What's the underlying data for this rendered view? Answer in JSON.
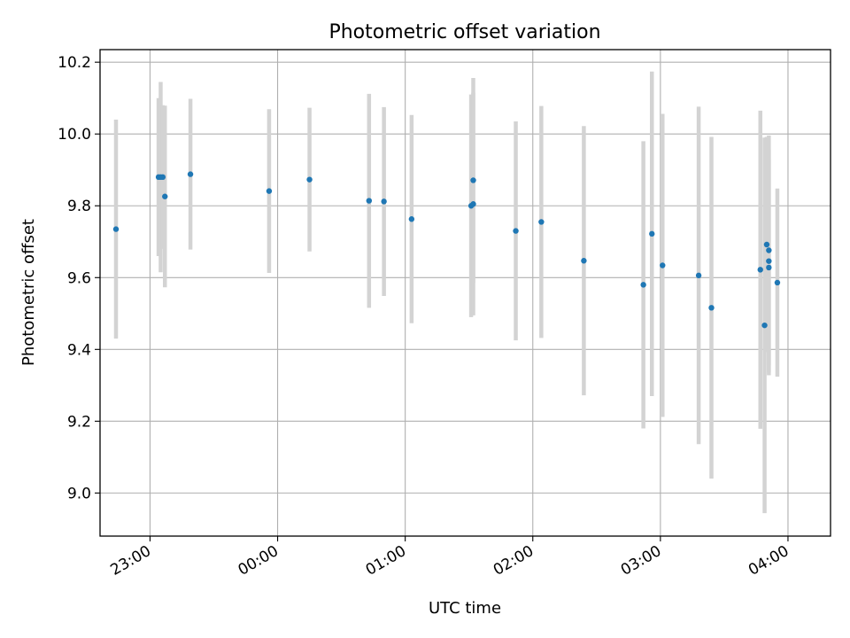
{
  "chart_data": {
    "type": "scatter",
    "title": "Photometric offset variation",
    "xlabel": "UTC time",
    "ylabel": "Photometric offset",
    "x_ticks": [
      "23:00",
      "00:00",
      "01:00",
      "02:00",
      "03:00",
      "04:00"
    ],
    "y_ticks": [
      "9.0",
      "9.2",
      "9.4",
      "9.6",
      "9.8",
      "10.0",
      "10.2"
    ],
    "grid": true,
    "point_color": "#1f77b4",
    "errorbar_color": "#d3d3d3",
    "points": [
      {
        "t": "22:44",
        "y": 9.735,
        "err": 0.305
      },
      {
        "t": "23:04",
        "y": 9.88,
        "err": 0.22
      },
      {
        "t": "23:05",
        "y": 9.88,
        "err": 0.265
      },
      {
        "t": "23:06",
        "y": 9.88,
        "err": 0.2
      },
      {
        "t": "23:07",
        "y": 9.826,
        "err": 0.253
      },
      {
        "t": "23:19",
        "y": 9.888,
        "err": 0.21
      },
      {
        "t": "23:56",
        "y": 9.841,
        "err": 0.228
      },
      {
        "t": "00:15",
        "y": 9.873,
        "err": 0.2
      },
      {
        "t": "00:43",
        "y": 9.814,
        "err": 0.298
      },
      {
        "t": "00:50",
        "y": 9.812,
        "err": 0.263
      },
      {
        "t": "01:03",
        "y": 9.763,
        "err": 0.29
      },
      {
        "t": "01:31",
        "y": 9.8,
        "err": 0.31
      },
      {
        "t": "01:32",
        "y": 9.805,
        "err": 0.31
      },
      {
        "t": "01:32",
        "y": 9.871,
        "err": 0.285
      },
      {
        "t": "01:52",
        "y": 9.73,
        "err": 0.305
      },
      {
        "t": "02:04",
        "y": 9.755,
        "err": 0.323
      },
      {
        "t": "02:24",
        "y": 9.647,
        "err": 0.375
      },
      {
        "t": "02:52",
        "y": 9.58,
        "err": 0.4
      },
      {
        "t": "02:56",
        "y": 9.722,
        "err": 0.452
      },
      {
        "t": "03:01",
        "y": 9.634,
        "err": 0.422
      },
      {
        "t": "03:18",
        "y": 9.606,
        "err": 0.47
      },
      {
        "t": "03:24",
        "y": 9.516,
        "err": 0.476
      },
      {
        "t": "03:47",
        "y": 9.622,
        "err": 0.443
      },
      {
        "t": "03:49",
        "y": 9.467,
        "err": 0.523
      },
      {
        "t": "03:50",
        "y": 9.692,
        "err": 0.3
      },
      {
        "t": "03:51",
        "y": 9.676,
        "err": 0.32
      },
      {
        "t": "03:51",
        "y": 9.628,
        "err": 0.3
      },
      {
        "t": "03:51",
        "y": 9.646,
        "err": 0.31
      },
      {
        "t": "03:55",
        "y": 9.586,
        "err": 0.262
      }
    ]
  }
}
